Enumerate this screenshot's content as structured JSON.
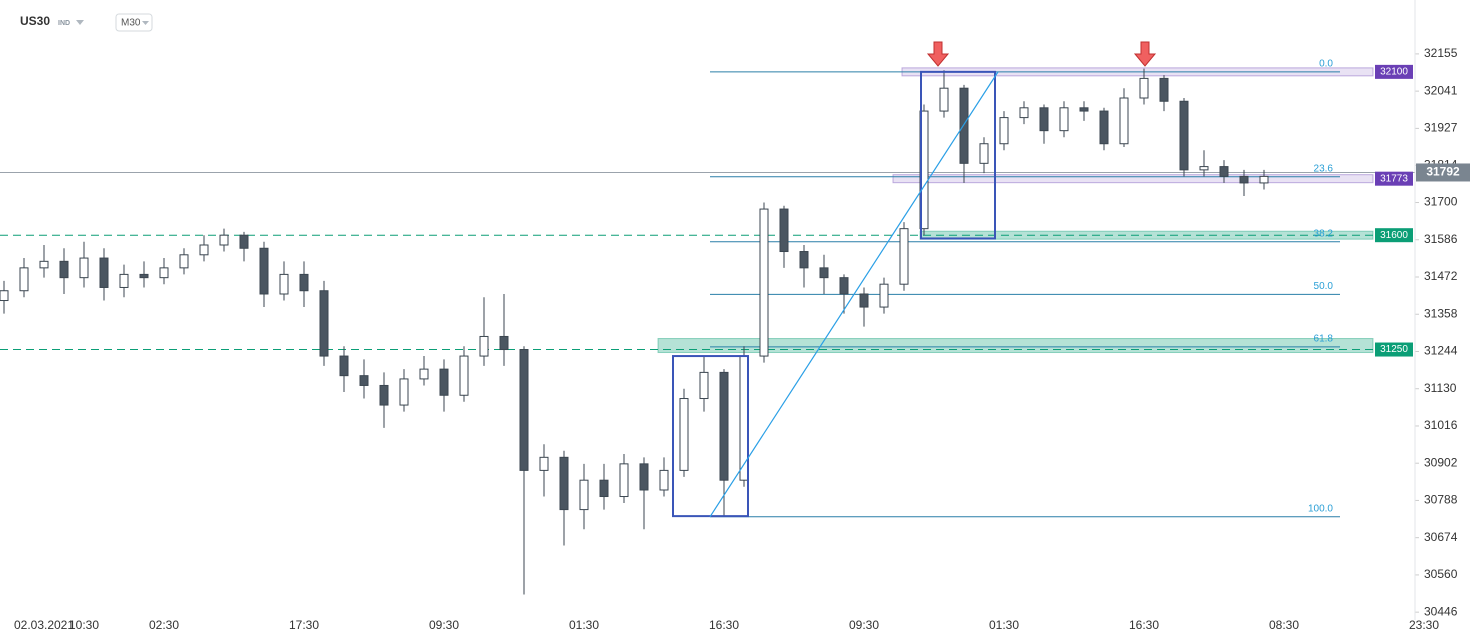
{
  "chart_data": {
    "type": "candlestick",
    "symbol": "US30",
    "market": "IND",
    "interval": "M30",
    "up_color": "#ffffff",
    "down_color": "#4b5661",
    "wick_color": "#3b4650",
    "categories": [
      null,
      null,
      "02.03.2021",
      null,
      "10:30",
      null,
      null,
      null,
      "02:30",
      null,
      null,
      null,
      null,
      null,
      null,
      "17:30",
      null,
      null,
      null,
      null,
      null,
      null,
      "09:30",
      null,
      null,
      null,
      null,
      null,
      null,
      "01:30",
      null,
      null,
      null,
      null,
      null,
      null,
      "16:30",
      null,
      null,
      null,
      null,
      null,
      null,
      "09:30",
      null,
      null,
      null,
      null,
      null,
      null,
      "01:30",
      null,
      null,
      null,
      null,
      null,
      null,
      "16:30",
      null,
      null,
      null,
      null,
      null,
      null,
      "08:30",
      null,
      null,
      null,
      null,
      null,
      null,
      "23:30"
    ],
    "candles": [
      [
        31400,
        31460,
        31360,
        31430
      ],
      [
        31430,
        31530,
        31410,
        31500
      ],
      [
        31500,
        31570,
        31470,
        31520
      ],
      [
        31520,
        31560,
        31420,
        31470
      ],
      [
        31470,
        31580,
        31440,
        31530
      ],
      [
        31530,
        31560,
        31400,
        31440
      ],
      [
        31440,
        31510,
        31410,
        31480
      ],
      [
        31480,
        31520,
        31440,
        31470
      ],
      [
        31470,
        31530,
        31450,
        31500
      ],
      [
        31500,
        31560,
        31480,
        31540
      ],
      [
        31540,
        31600,
        31520,
        31570
      ],
      [
        31570,
        31620,
        31550,
        31600
      ],
      [
        31600,
        31610,
        31520,
        31560
      ],
      [
        31560,
        31580,
        31380,
        31420
      ],
      [
        31420,
        31520,
        31400,
        31480
      ],
      [
        31480,
        31520,
        31380,
        31430
      ],
      [
        31430,
        31460,
        31200,
        31230
      ],
      [
        31230,
        31260,
        31120,
        31170
      ],
      [
        31170,
        31220,
        31100,
        31140
      ],
      [
        31140,
        31180,
        31010,
        31080
      ],
      [
        31080,
        31190,
        31060,
        31160
      ],
      [
        31160,
        31230,
        31140,
        31190
      ],
      [
        31190,
        31220,
        31060,
        31110
      ],
      [
        31110,
        31260,
        31090,
        31230
      ],
      [
        31230,
        31410,
        31200,
        31290
      ],
      [
        31290,
        31420,
        31200,
        31250
      ],
      [
        31250,
        31260,
        30500,
        30880
      ],
      [
        30880,
        30960,
        30800,
        30920
      ],
      [
        30920,
        30940,
        30650,
        30760
      ],
      [
        30760,
        30900,
        30700,
        30850
      ],
      [
        30850,
        30900,
        30760,
        30800
      ],
      [
        30800,
        30930,
        30780,
        30900
      ],
      [
        30900,
        30920,
        30700,
        30820
      ],
      [
        30820,
        30920,
        30800,
        30880
      ],
      [
        30880,
        31130,
        30860,
        31100
      ],
      [
        31100,
        31230,
        31060,
        31180
      ],
      [
        31180,
        31190,
        30740,
        30850
      ],
      [
        30850,
        31260,
        30830,
        31230
      ],
      [
        31230,
        31700,
        31210,
        31680
      ],
      [
        31680,
        31690,
        31500,
        31550
      ],
      [
        31550,
        31570,
        31440,
        31500
      ],
      [
        31500,
        31540,
        31420,
        31470
      ],
      [
        31470,
        31480,
        31360,
        31420
      ],
      [
        31420,
        31440,
        31320,
        31380
      ],
      [
        31380,
        31470,
        31360,
        31450
      ],
      [
        31450,
        31640,
        31430,
        31620
      ],
      [
        31620,
        32000,
        31600,
        31980
      ],
      [
        31980,
        32105,
        31960,
        32050
      ],
      [
        32050,
        32060,
        31760,
        31820
      ],
      [
        31820,
        31900,
        31790,
        31880
      ],
      [
        31880,
        31980,
        31860,
        31960
      ],
      [
        31960,
        32010,
        31940,
        31990
      ],
      [
        31990,
        32000,
        31880,
        31920
      ],
      [
        31920,
        32010,
        31900,
        31990
      ],
      [
        31990,
        32010,
        31950,
        31980
      ],
      [
        31980,
        31990,
        31860,
        31880
      ],
      [
        31880,
        32050,
        31870,
        32020
      ],
      [
        32020,
        32110,
        32000,
        32080
      ],
      [
        32080,
        32090,
        31980,
        32010
      ],
      [
        32010,
        32020,
        31780,
        31800
      ],
      [
        31800,
        31860,
        31780,
        31810
      ],
      [
        31810,
        31830,
        31760,
        31780
      ],
      [
        31780,
        31800,
        31720,
        31760
      ],
      [
        31760,
        31800,
        31740,
        31780
      ],
      null,
      null,
      null,
      null,
      null,
      null,
      null,
      null
    ],
    "ylim": [
      30422,
      32320
    ],
    "yticks": [
      32155,
      32041,
      31927,
      31814,
      31700,
      31586,
      31472,
      31358,
      31244,
      31130,
      31016,
      30902,
      30788,
      30674,
      30560,
      30446
    ],
    "last_price": 31792,
    "levels": [
      {
        "price": 32100,
        "color": "#6a3fb5",
        "dashed": false
      },
      {
        "price": 31773,
        "color": "#6a3fb5",
        "dashed": false
      },
      {
        "price": 31600,
        "color": "#0b9e76",
        "dashed": true
      },
      {
        "price": 31250,
        "color": "#0b9e76",
        "dashed": true
      }
    ],
    "fib": [
      {
        "ratio": "0.0",
        "price": 32100
      },
      {
        "ratio": "23.6",
        "price": 31779
      },
      {
        "ratio": "38.2",
        "price": 31580
      },
      {
        "ratio": "50.0",
        "price": 31419
      },
      {
        "ratio": "61.8",
        "price": 31258
      },
      {
        "ratio": "100.0",
        "price": 30738
      }
    ],
    "boxes": [
      {
        "high": 31230,
        "low": 30740
      },
      {
        "high": 32100,
        "low": 31590
      }
    ],
    "trend_line": [
      30738,
      32100
    ]
  }
}
